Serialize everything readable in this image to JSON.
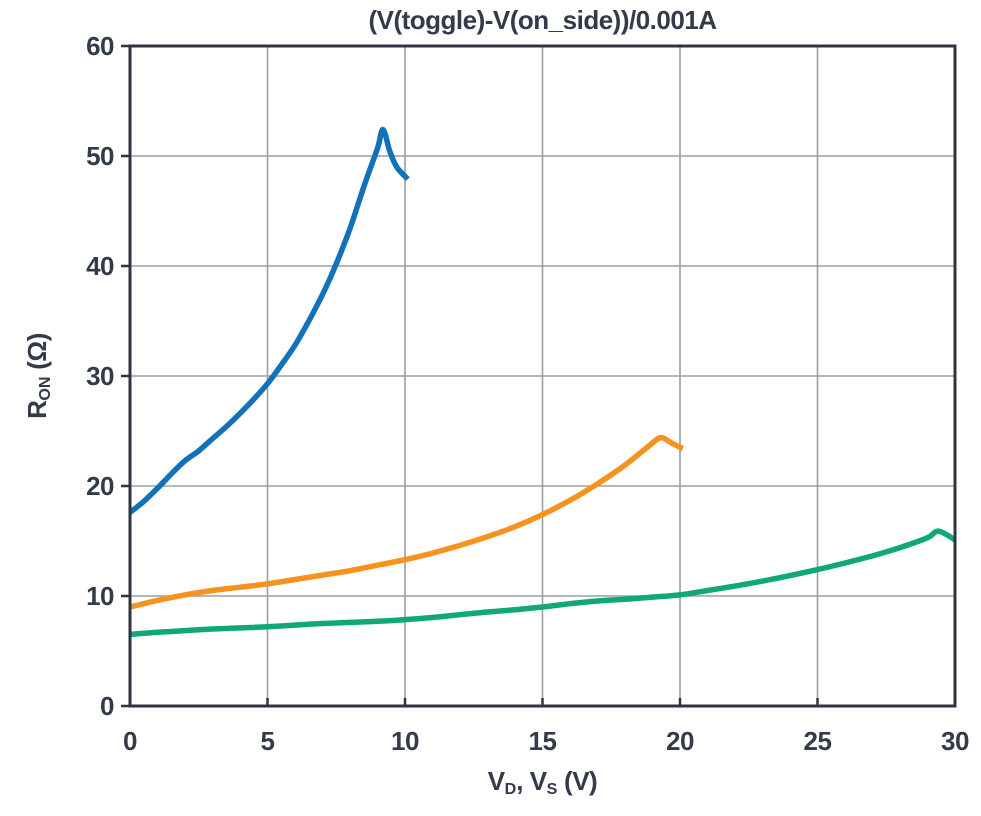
{
  "chart_data": {
    "type": "line",
    "title": "(V(toggle)-V(on_side))/0.001A",
    "xlabel_plain": "VD, VS (V)",
    "ylabel_plain": "RON (Ω)",
    "xlabel_parts": [
      {
        "t": "V"
      },
      {
        "t": "D",
        "sub": true
      },
      {
        "t": ", V"
      },
      {
        "t": "S",
        "sub": true
      },
      {
        "t": " (V)"
      }
    ],
    "ylabel_parts": [
      {
        "t": "R"
      },
      {
        "t": "ON",
        "sub": true
      },
      {
        "t": " (Ω)"
      }
    ],
    "xlim": [
      0,
      30
    ],
    "ylim": [
      0,
      60
    ],
    "x_ticks": [
      0,
      5,
      10,
      15,
      20,
      25,
      30
    ],
    "y_ticks": [
      0,
      10,
      20,
      30,
      40,
      50,
      60
    ],
    "grid": true,
    "legend_position": "none",
    "series": [
      {
        "name": "blue-curve",
        "color": "#1272b9",
        "points": [
          [
            0,
            17.6
          ],
          [
            0.5,
            18.6
          ],
          [
            1,
            19.8
          ],
          [
            1.5,
            21.1
          ],
          [
            2,
            22.3
          ],
          [
            2.5,
            23.2
          ],
          [
            3,
            24.3
          ],
          [
            3.5,
            25.4
          ],
          [
            4,
            26.6
          ],
          [
            4.5,
            27.9
          ],
          [
            5,
            29.3
          ],
          [
            5.5,
            31.0
          ],
          [
            6,
            32.8
          ],
          [
            6.5,
            35.0
          ],
          [
            7,
            37.4
          ],
          [
            7.5,
            40.2
          ],
          [
            8,
            43.4
          ],
          [
            8.5,
            47.2
          ],
          [
            9,
            50.7
          ],
          [
            9.2,
            52.4
          ],
          [
            9.45,
            50.4
          ],
          [
            9.7,
            49.0
          ],
          [
            10.1,
            47.9
          ]
        ]
      },
      {
        "name": "orange-curve",
        "color": "#f6931e",
        "points": [
          [
            0,
            9.0
          ],
          [
            1,
            9.6
          ],
          [
            2,
            10.1
          ],
          [
            3,
            10.5
          ],
          [
            4,
            10.8
          ],
          [
            5,
            11.1
          ],
          [
            6,
            11.5
          ],
          [
            7,
            11.9
          ],
          [
            8,
            12.3
          ],
          [
            9,
            12.8
          ],
          [
            10,
            13.3
          ],
          [
            11,
            13.9
          ],
          [
            12,
            14.6
          ],
          [
            13,
            15.4
          ],
          [
            14,
            16.3
          ],
          [
            15,
            17.4
          ],
          [
            16,
            18.7
          ],
          [
            17,
            20.2
          ],
          [
            18,
            21.9
          ],
          [
            18.9,
            23.7
          ],
          [
            19.3,
            24.4
          ],
          [
            19.7,
            23.9
          ],
          [
            20.1,
            23.4
          ]
        ]
      },
      {
        "name": "green-curve",
        "color": "#10a878",
        "points": [
          [
            0,
            6.5
          ],
          [
            1,
            6.7
          ],
          [
            2,
            6.85
          ],
          [
            3,
            7.0
          ],
          [
            4,
            7.1
          ],
          [
            5,
            7.2
          ],
          [
            6,
            7.35
          ],
          [
            7,
            7.5
          ],
          [
            8,
            7.6
          ],
          [
            9,
            7.7
          ],
          [
            10,
            7.85
          ],
          [
            11,
            8.05
          ],
          [
            12,
            8.3
          ],
          [
            13,
            8.55
          ],
          [
            14,
            8.75
          ],
          [
            15,
            9.0
          ],
          [
            16,
            9.3
          ],
          [
            17,
            9.55
          ],
          [
            18,
            9.7
          ],
          [
            19,
            9.9
          ],
          [
            20,
            10.1
          ],
          [
            21,
            10.5
          ],
          [
            22,
            10.9
          ],
          [
            23,
            11.35
          ],
          [
            24,
            11.85
          ],
          [
            25,
            12.4
          ],
          [
            26,
            13.0
          ],
          [
            27,
            13.65
          ],
          [
            28,
            14.4
          ],
          [
            29,
            15.3
          ],
          [
            29.4,
            15.9
          ],
          [
            30,
            15.1
          ]
        ]
      }
    ]
  },
  "colors": {
    "background": "#ffffff",
    "text": "#333a49",
    "grid_line": "#9d9da2",
    "axis_box": "#2e3440"
  }
}
